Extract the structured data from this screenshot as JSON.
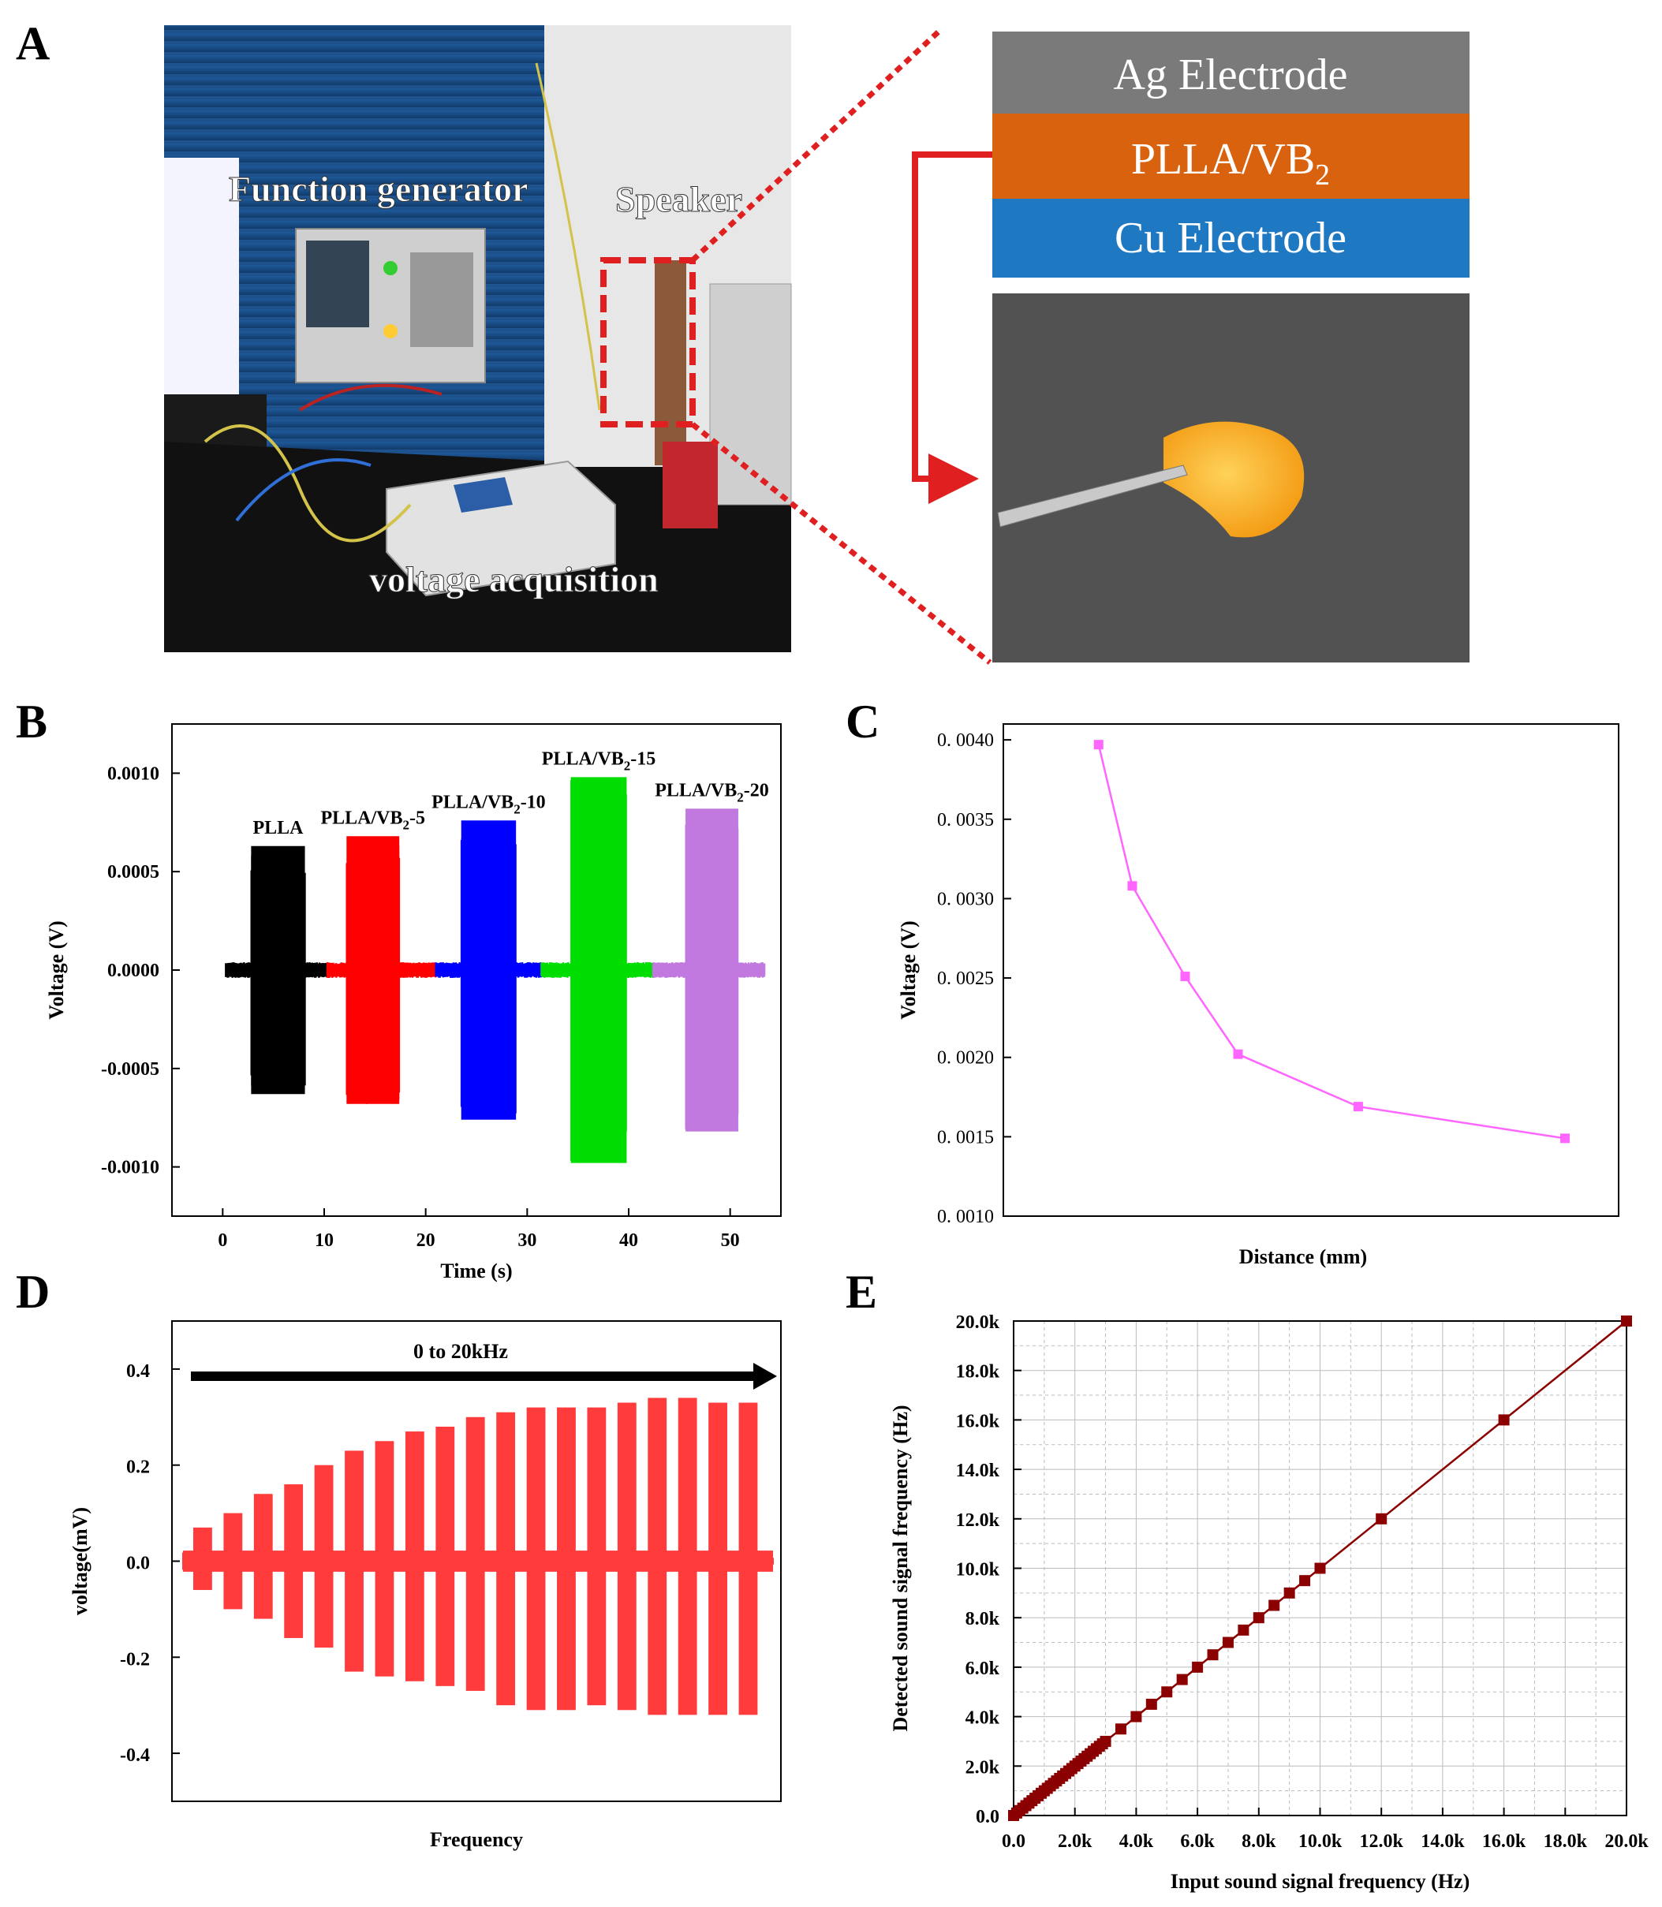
{
  "figure": {
    "panel_letters": [
      "A",
      "B",
      "C",
      "D",
      "E"
    ]
  },
  "panel_a": {
    "photo_labels": [
      "Function generator",
      "Speaker",
      "voltage acquisition"
    ],
    "layers": [
      {
        "label": "Ag Electrode",
        "color": "#7a7a7a"
      },
      {
        "label": "PLLA/VB",
        "subscript": "2",
        "color": "#d9620f"
      },
      {
        "label": "Cu Electrode",
        "color": "#1f79c2"
      }
    ],
    "accent_color": "#e02020"
  },
  "chart_data": [
    {
      "id": "B",
      "type": "line",
      "xlabel": "Time (s)",
      "ylabel": "Voltage (V)",
      "xlim": [
        -5,
        55
      ],
      "ylim": [
        -0.00125,
        0.00125
      ],
      "xticks": [
        0,
        10,
        20,
        30,
        40,
        50
      ],
      "yticks": [
        0.001,
        0.0005,
        0.0,
        -0.0005,
        -0.001
      ],
      "ytick_labels": [
        "0.0010",
        "0.0005",
        "0.0000",
        "-0.0005",
        "-0.0010"
      ],
      "baseline_noise": 4e-05,
      "series": [
        {
          "name": "PLLA",
          "label_main": "PLLA",
          "label_sub": "",
          "label_suffix": "",
          "color": "#000000",
          "x_start": 0.3,
          "x_end": 10.3,
          "burst_start": 2.8,
          "burst_end": 8.1,
          "amplitude": 0.00063
        },
        {
          "name": "PLLA/VB2-5",
          "label_main": "PLLA/VB",
          "label_sub": "2",
          "label_suffix": "-5",
          "color": "#ff0000",
          "x_start": 10.3,
          "x_end": 21.0,
          "burst_start": 12.2,
          "burst_end": 17.4,
          "amplitude": 0.00068
        },
        {
          "name": "PLLA/VB2-10",
          "label_main": "PLLA/VB",
          "label_sub": "2",
          "label_suffix": "-10",
          "color": "#0000ff",
          "x_start": 21.0,
          "x_end": 31.4,
          "burst_start": 23.5,
          "burst_end": 28.9,
          "amplitude": 0.00076
        },
        {
          "name": "PLLA/VB2-15",
          "label_main": "PLLA/VB",
          "label_sub": "2",
          "label_suffix": "-15",
          "color": "#00dd00",
          "x_start": 31.4,
          "x_end": 42.4,
          "burst_start": 34.3,
          "burst_end": 39.8,
          "amplitude": 0.00098
        },
        {
          "name": "PLLA/VB2-20",
          "label_main": "PLLA/VB",
          "label_sub": "2",
          "label_suffix": "-20",
          "color": "#c179e0",
          "x_start": 42.4,
          "x_end": 53.4,
          "burst_start": 45.6,
          "burst_end": 50.8,
          "amplitude": 0.00082
        }
      ]
    },
    {
      "id": "C",
      "type": "line",
      "xlabel": "Distance (mm)",
      "ylabel": "Voltage (V)",
      "xlim": [
        0,
        10
      ],
      "ylim": [
        0.001,
        0.0041
      ],
      "yticks": [
        0.001,
        0.0015,
        0.002,
        0.0025,
        0.003,
        0.0035,
        0.004
      ],
      "ytick_labels": [
        "0. 0010",
        "0. 0015",
        "0. 0020",
        "0. 0025",
        "0. 0030",
        "0. 0035",
        "0. 0040"
      ],
      "color": "#ff66ff",
      "x": [
        0.8,
        1.5,
        2.6,
        3.7,
        6.2,
        10.5
      ],
      "y": [
        0.00397,
        0.00308,
        0.00251,
        0.00202,
        0.00169,
        0.00149
      ]
    },
    {
      "id": "D",
      "type": "line",
      "title": "0  to  20kHz",
      "xlabel": "Frequency",
      "ylabel": "voltage(mV)",
      "xlim": [
        0,
        20
      ],
      "ylim": [
        -0.5,
        0.5
      ],
      "yticks": [
        0.4,
        0.2,
        0.0,
        -0.2,
        -0.4
      ],
      "ytick_labels": [
        "0.4",
        "0.2",
        "0.0",
        "-0.2",
        "-0.4"
      ],
      "color": "#ff3b3b",
      "arrow_color": "#000000",
      "baseline_noise": 0.012,
      "burst_top": [
        0.07,
        0.1,
        0.14,
        0.16,
        0.2,
        0.23,
        0.25,
        0.27,
        0.28,
        0.3,
        0.31,
        0.32,
        0.32,
        0.32,
        0.33,
        0.34,
        0.34,
        0.33,
        0.33
      ],
      "burst_bottom": [
        -0.06,
        -0.1,
        -0.12,
        -0.16,
        -0.18,
        -0.23,
        -0.24,
        -0.25,
        -0.26,
        -0.27,
        -0.3,
        -0.31,
        -0.31,
        -0.3,
        -0.31,
        -0.32,
        -0.32,
        -0.32,
        -0.32
      ]
    },
    {
      "id": "E",
      "type": "scatter",
      "xlabel": "Input sound signal frequency (Hz)",
      "ylabel": "Detected sound signal frequency (Hz)",
      "xlim": [
        0,
        20000
      ],
      "ylim": [
        0,
        20000
      ],
      "xticks": [
        0,
        2000,
        4000,
        6000,
        8000,
        10000,
        12000,
        14000,
        16000,
        18000,
        20000
      ],
      "xtick_labels": [
        "0.0",
        "2.0k",
        "4.0k",
        "6.0k",
        "8.0k",
        "10.0k",
        "12.0k",
        "14.0k",
        "16.0k",
        "18.0k",
        "20.0k"
      ],
      "yticks": [
        0,
        2000,
        4000,
        6000,
        8000,
        10000,
        12000,
        14000,
        16000,
        18000,
        20000
      ],
      "ytick_labels": [
        "0.0",
        "2.0k",
        "4.0k",
        "6.0k",
        "8.0k",
        "10.0k",
        "12.0k",
        "14.0k",
        "16.0k",
        "18.0k",
        "20.0k"
      ],
      "color": "#8b0000",
      "x": [
        0,
        100,
        200,
        300,
        400,
        500,
        600,
        700,
        800,
        900,
        1000,
        1100,
        1200,
        1300,
        1400,
        1500,
        1600,
        1700,
        1800,
        1900,
        2000,
        2100,
        2200,
        2300,
        2400,
        2500,
        2600,
        2700,
        2800,
        2900,
        3000,
        3500,
        4000,
        4500,
        5000,
        5500,
        6000,
        6500,
        7000,
        7500,
        8000,
        8500,
        9000,
        9500,
        10000,
        12000,
        16000,
        20000
      ],
      "y": [
        0,
        100,
        200,
        300,
        400,
        500,
        600,
        700,
        800,
        900,
        1000,
        1100,
        1200,
        1300,
        1400,
        1500,
        1600,
        1700,
        1800,
        1900,
        2000,
        2100,
        2200,
        2300,
        2400,
        2500,
        2600,
        2700,
        2800,
        2900,
        3000,
        3500,
        4000,
        4500,
        5000,
        5500,
        6000,
        6500,
        7000,
        7500,
        8000,
        8500,
        9000,
        9500,
        10000,
        12000,
        16000,
        20000
      ]
    }
  ]
}
